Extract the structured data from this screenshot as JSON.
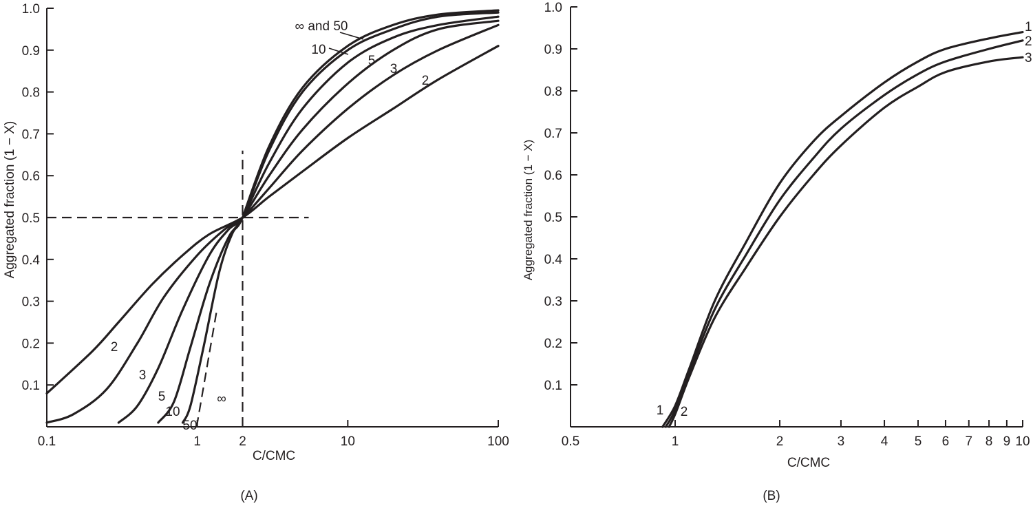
{
  "chart_data": [
    {
      "panel": "(A)",
      "type": "line",
      "x_scale": "log",
      "xlabel": "C/CMC",
      "ylabel": "Aggregated fraction (1 − X)",
      "xlim": [
        0.1,
        100
      ],
      "ylim": [
        0,
        1.0
      ],
      "x_ticks": [
        0.1,
        1,
        2,
        10,
        100
      ],
      "x_tick_labels": [
        "0.1",
        "1",
        "2",
        "10",
        "100"
      ],
      "y_ticks": [
        0.1,
        0.2,
        0.3,
        0.4,
        0.5,
        0.6,
        0.7,
        0.8,
        0.9,
        1.0
      ],
      "y_tick_labels": [
        "0.1",
        "0.2",
        "0.3",
        "0.4",
        "0.5",
        "0.6",
        "0.7",
        "0.8",
        "0.9",
        "1.0"
      ],
      "reference_lines": [
        {
          "orientation": "horizontal",
          "y": 0.5,
          "x_range": [
            0.1,
            5.5
          ],
          "style": "dashed"
        },
        {
          "orientation": "vertical",
          "x": 2,
          "y_range": [
            0,
            0.66
          ],
          "style": "dashed"
        },
        {
          "orientation": "diagonal",
          "points": [
            [
              0.99,
              0
            ],
            [
              1.35,
              0.28
            ]
          ],
          "style": "dashed"
        }
      ],
      "series": [
        {
          "name": "2",
          "x": [
            0.1,
            0.2,
            0.3,
            0.5,
            0.8,
            1.2,
            2,
            3,
            5,
            10,
            20,
            40,
            100
          ],
          "y": [
            0.08,
            0.18,
            0.25,
            0.34,
            0.41,
            0.46,
            0.5,
            0.55,
            0.61,
            0.69,
            0.76,
            0.83,
            0.91
          ]
        },
        {
          "name": "3",
          "x": [
            0.1,
            0.15,
            0.25,
            0.4,
            0.6,
            1.0,
            1.5,
            2,
            3,
            5,
            10,
            20,
            40,
            100
          ],
          "y": [
            0.01,
            0.03,
            0.09,
            0.2,
            0.31,
            0.41,
            0.47,
            0.5,
            0.57,
            0.66,
            0.76,
            0.84,
            0.9,
            0.96
          ]
        },
        {
          "name": "5",
          "x": [
            0.3,
            0.4,
            0.55,
            0.8,
            1.2,
            1.6,
            2,
            3,
            5,
            10,
            20,
            40,
            100
          ],
          "y": [
            0.01,
            0.05,
            0.14,
            0.28,
            0.41,
            0.47,
            0.5,
            0.6,
            0.71,
            0.82,
            0.9,
            0.95,
            0.97
          ]
        },
        {
          "name": "10",
          "x": [
            0.55,
            0.7,
            0.9,
            1.2,
            1.6,
            2,
            3,
            5,
            10,
            20,
            40,
            100
          ],
          "y": [
            0.01,
            0.06,
            0.19,
            0.34,
            0.45,
            0.5,
            0.63,
            0.76,
            0.87,
            0.93,
            0.96,
            0.98
          ]
        },
        {
          "name": "50",
          "x": [
            0.8,
            0.9,
            1.1,
            1.4,
            1.7,
            2,
            3,
            5,
            10,
            20,
            40,
            100
          ],
          "y": [
            0.01,
            0.05,
            0.19,
            0.37,
            0.46,
            0.5,
            0.66,
            0.8,
            0.9,
            0.95,
            0.98,
            0.99
          ]
        },
        {
          "name": "∞ and 50",
          "x": [
            2,
            3,
            5,
            10,
            20,
            40,
            100
          ],
          "y": [
            0.5,
            0.67,
            0.81,
            0.91,
            0.96,
            0.985,
            0.995
          ]
        }
      ],
      "annotations": [
        "∞ and 50",
        "10",
        "5",
        "3",
        "2",
        "2",
        "3",
        "5",
        "10",
        "50",
        "∞"
      ]
    },
    {
      "panel": "(B)",
      "type": "line",
      "x_scale": "log",
      "xlabel": "C/CMC",
      "ylabel": "Aggregated fraction (1 − X)",
      "xlim": [
        0.5,
        10
      ],
      "ylim": [
        0,
        1.0
      ],
      "x_ticks": [
        0.5,
        1,
        2,
        3,
        4,
        5,
        6,
        7,
        8,
        9,
        10
      ],
      "x_tick_labels": [
        "0.5",
        "1",
        "2",
        "3",
        "4",
        "5",
        "6",
        "7",
        "8",
        "9",
        "10"
      ],
      "y_ticks": [
        0.1,
        0.2,
        0.3,
        0.4,
        0.5,
        0.6,
        0.7,
        0.8,
        0.9,
        1.0
      ],
      "y_tick_labels": [
        "0.1",
        "0.2",
        "0.3",
        "0.4",
        "0.5",
        "0.6",
        "0.7",
        "0.8",
        "0.9",
        "1.0"
      ],
      "series": [
        {
          "name": "1",
          "x": [
            0.92,
            1.0,
            1.1,
            1.3,
            1.6,
            2.0,
            2.5,
            3.0,
            4.0,
            5.0,
            6.0,
            8.0,
            10.0
          ],
          "y": [
            0.0,
            0.05,
            0.14,
            0.3,
            0.44,
            0.58,
            0.68,
            0.74,
            0.82,
            0.87,
            0.9,
            0.925,
            0.94
          ]
        },
        {
          "name": "2",
          "x": [
            0.94,
            1.0,
            1.1,
            1.3,
            1.6,
            2.0,
            2.5,
            3.0,
            4.0,
            5.0,
            6.0,
            8.0,
            10.0
          ],
          "y": [
            0.0,
            0.04,
            0.13,
            0.28,
            0.41,
            0.54,
            0.64,
            0.71,
            0.79,
            0.84,
            0.87,
            0.9,
            0.92
          ]
        },
        {
          "name": "3",
          "x": [
            0.96,
            1.0,
            1.1,
            1.3,
            1.6,
            2.0,
            2.5,
            3.0,
            4.0,
            5.0,
            6.0,
            8.0,
            10.0
          ],
          "y": [
            0.0,
            0.03,
            0.12,
            0.26,
            0.38,
            0.5,
            0.6,
            0.67,
            0.76,
            0.81,
            0.845,
            0.87,
            0.88
          ]
        }
      ],
      "annotations": [
        "1",
        "2",
        "3",
        "1",
        "2"
      ]
    }
  ]
}
